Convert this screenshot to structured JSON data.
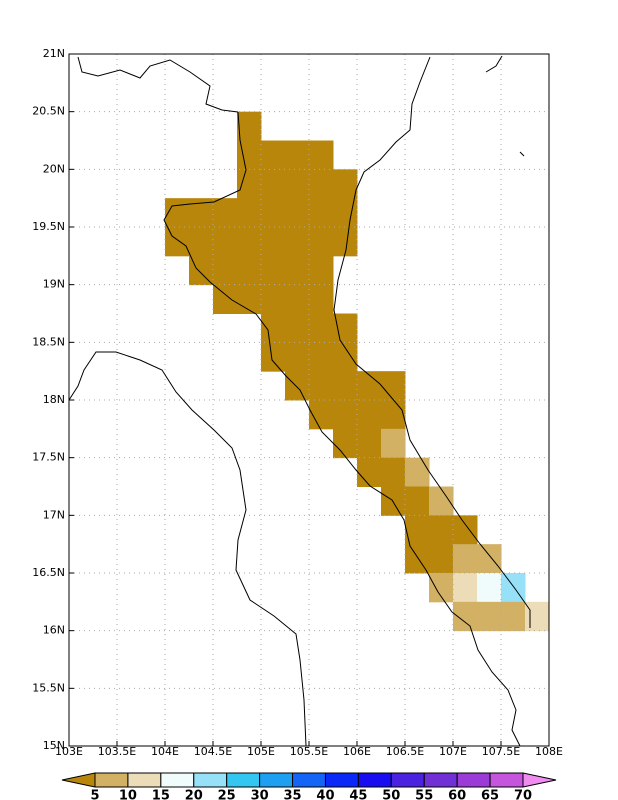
{
  "chart_data": {
    "type": "grid-map",
    "xlim": [
      103,
      108
    ],
    "ylim": [
      15,
      21
    ],
    "xticks": [
      {
        "value": 103,
        "label": "103E"
      },
      {
        "value": 103.5,
        "label": "103.5E"
      },
      {
        "value": 104,
        "label": "104E"
      },
      {
        "value": 104.5,
        "label": "104.5E"
      },
      {
        "value": 105,
        "label": "105E"
      },
      {
        "value": 105.5,
        "label": "105.5E"
      },
      {
        "value": 106,
        "label": "106E"
      },
      {
        "value": 106.5,
        "label": "106.5E"
      },
      {
        "value": 107,
        "label": "107E"
      },
      {
        "value": 107.5,
        "label": "107.5E"
      },
      {
        "value": 108,
        "label": "108E"
      }
    ],
    "yticks": [
      {
        "value": 15,
        "label": "15N"
      },
      {
        "value": 15.5,
        "label": "15.5N"
      },
      {
        "value": 16,
        "label": "16N"
      },
      {
        "value": 16.5,
        "label": "16.5N"
      },
      {
        "value": 17,
        "label": "17N"
      },
      {
        "value": 17.5,
        "label": "17.5N"
      },
      {
        "value": 18,
        "label": "18N"
      },
      {
        "value": 18.5,
        "label": "18.5N"
      },
      {
        "value": 19,
        "label": "19N"
      },
      {
        "value": 19.5,
        "label": "19.5N"
      },
      {
        "value": 20,
        "label": "20N"
      },
      {
        "value": 20.5,
        "label": "20.5N"
      },
      {
        "value": 21,
        "label": "21N"
      }
    ],
    "grid": true,
    "cell_size": 0.25,
    "levels": [
      5,
      10,
      15,
      20,
      25,
      30,
      35,
      40,
      45,
      50,
      55,
      60,
      65,
      70
    ],
    "colors": [
      "#b8860b",
      "#d2b064",
      "#ecdcb8",
      "#f0fcfc",
      "#96e0f8",
      "#32c6f0",
      "#1ea0f2",
      "#1464f6",
      "#0a28f8",
      "#1a0cf0",
      "#4a22e0",
      "#7030d6",
      "#9c3ad8",
      "#c455dc",
      "#f08cf0"
    ],
    "cells": [
      {
        "lat": 20.25,
        "lon": 104.75,
        "values": [
          2.5
        ]
      },
      {
        "lat": 20.0,
        "lon": 104.75,
        "values": [
          2.5,
          2.5,
          2.5,
          2.5
        ]
      },
      {
        "lat": 19.75,
        "lon": 104.75,
        "values": [
          2.5,
          2.5,
          2.5,
          2.5,
          2.5
        ]
      },
      {
        "lat": 19.5,
        "lon": 104.0,
        "values": [
          2.5,
          2.5,
          2.5,
          2.5,
          2.5,
          2.5,
          2.5,
          2.5
        ]
      },
      {
        "lat": 19.25,
        "lon": 104.0,
        "values": [
          2.5,
          2.5,
          2.5,
          2.5,
          2.5,
          2.5,
          2.5,
          2.5
        ]
      },
      {
        "lat": 19.0,
        "lon": 104.25,
        "values": [
          2.5,
          2.5,
          2.5,
          2.5,
          2.5,
          2.5
        ]
      },
      {
        "lat": 18.75,
        "lon": 104.5,
        "values": [
          2.5,
          2.5,
          2.5,
          2.5,
          2.5
        ]
      },
      {
        "lat": 18.5,
        "lon": 105.0,
        "values": [
          2.5,
          2.5,
          2.5,
          2.5
        ]
      },
      {
        "lat": 18.25,
        "lon": 105.0,
        "values": [
          2.5,
          2.5,
          2.5,
          2.5
        ]
      },
      {
        "lat": 18.0,
        "lon": 105.25,
        "values": [
          2.5,
          2.5,
          2.5,
          2.5,
          2.5
        ]
      },
      {
        "lat": 17.75,
        "lon": 105.5,
        "values": [
          2.5,
          2.5,
          2.5,
          2.5
        ]
      },
      {
        "lat": 17.5,
        "lon": 105.75,
        "values": [
          2.5,
          2.5,
          7.5
        ]
      },
      {
        "lat": 17.25,
        "lon": 106.0,
        "values": [
          2.5,
          2.5,
          7.5
        ]
      },
      {
        "lat": 17.0,
        "lon": 106.25,
        "values": [
          2.5,
          2.5,
          7.5
        ]
      },
      {
        "lat": 16.75,
        "lon": 106.5,
        "values": [
          2.5,
          2.5,
          2.5
        ]
      },
      {
        "lat": 16.5,
        "lon": 106.5,
        "values": [
          2.5,
          2.5,
          7.5,
          7.5
        ]
      },
      {
        "lat": 16.25,
        "lon": 106.75,
        "values": [
          7.5,
          12.5,
          17.5,
          22.5
        ]
      },
      {
        "lat": 16.0,
        "lon": 107.0,
        "values": [
          7.5,
          7.5,
          7.5,
          12.5
        ]
      }
    ]
  }
}
